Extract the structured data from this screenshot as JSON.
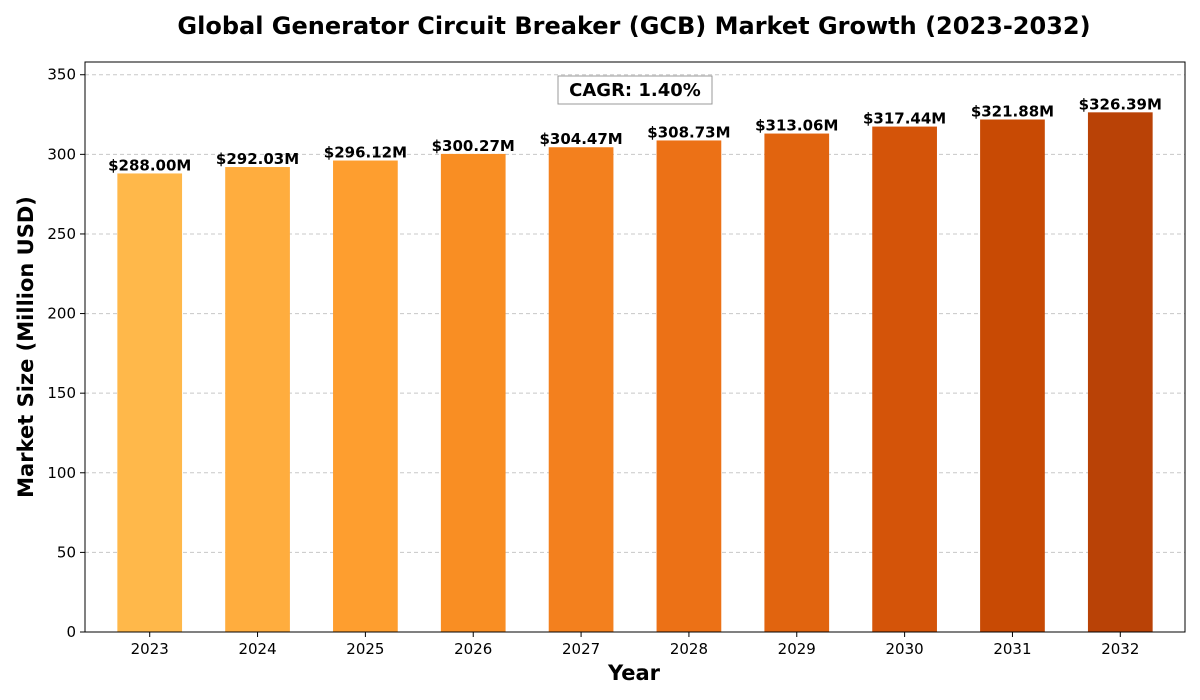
{
  "chart_data": {
    "type": "bar",
    "title": "Global Generator Circuit Breaker (GCB) Market Growth (2023-2032)",
    "xlabel": "Year",
    "ylabel": "Market Size (Million USD)",
    "categories": [
      "2023",
      "2024",
      "2025",
      "2026",
      "2027",
      "2028",
      "2029",
      "2030",
      "2031",
      "2032"
    ],
    "values": [
      288.0,
      292.03,
      296.12,
      300.27,
      304.47,
      308.73,
      313.06,
      317.44,
      321.88,
      326.39
    ],
    "data_labels": [
      "$288.00M",
      "$292.03M",
      "$296.12M",
      "$300.27M",
      "$304.47M",
      "$308.73M",
      "$313.06M",
      "$317.44M",
      "$321.88M",
      "$326.39M"
    ],
    "colors": [
      "#FFB84A",
      "#FFAD3E",
      "#FE9E2F",
      "#F98E23",
      "#F3801E",
      "#EC7116",
      "#E1640F",
      "#D45409",
      "#C84A04",
      "#B94206"
    ],
    "ylim": [
      0,
      358
    ],
    "yticks": [
      0,
      50,
      100,
      150,
      200,
      250,
      300,
      350
    ],
    "grid": true,
    "grid_axis": "y",
    "legend": "none",
    "annotation": "CAGR: 1.40%"
  }
}
